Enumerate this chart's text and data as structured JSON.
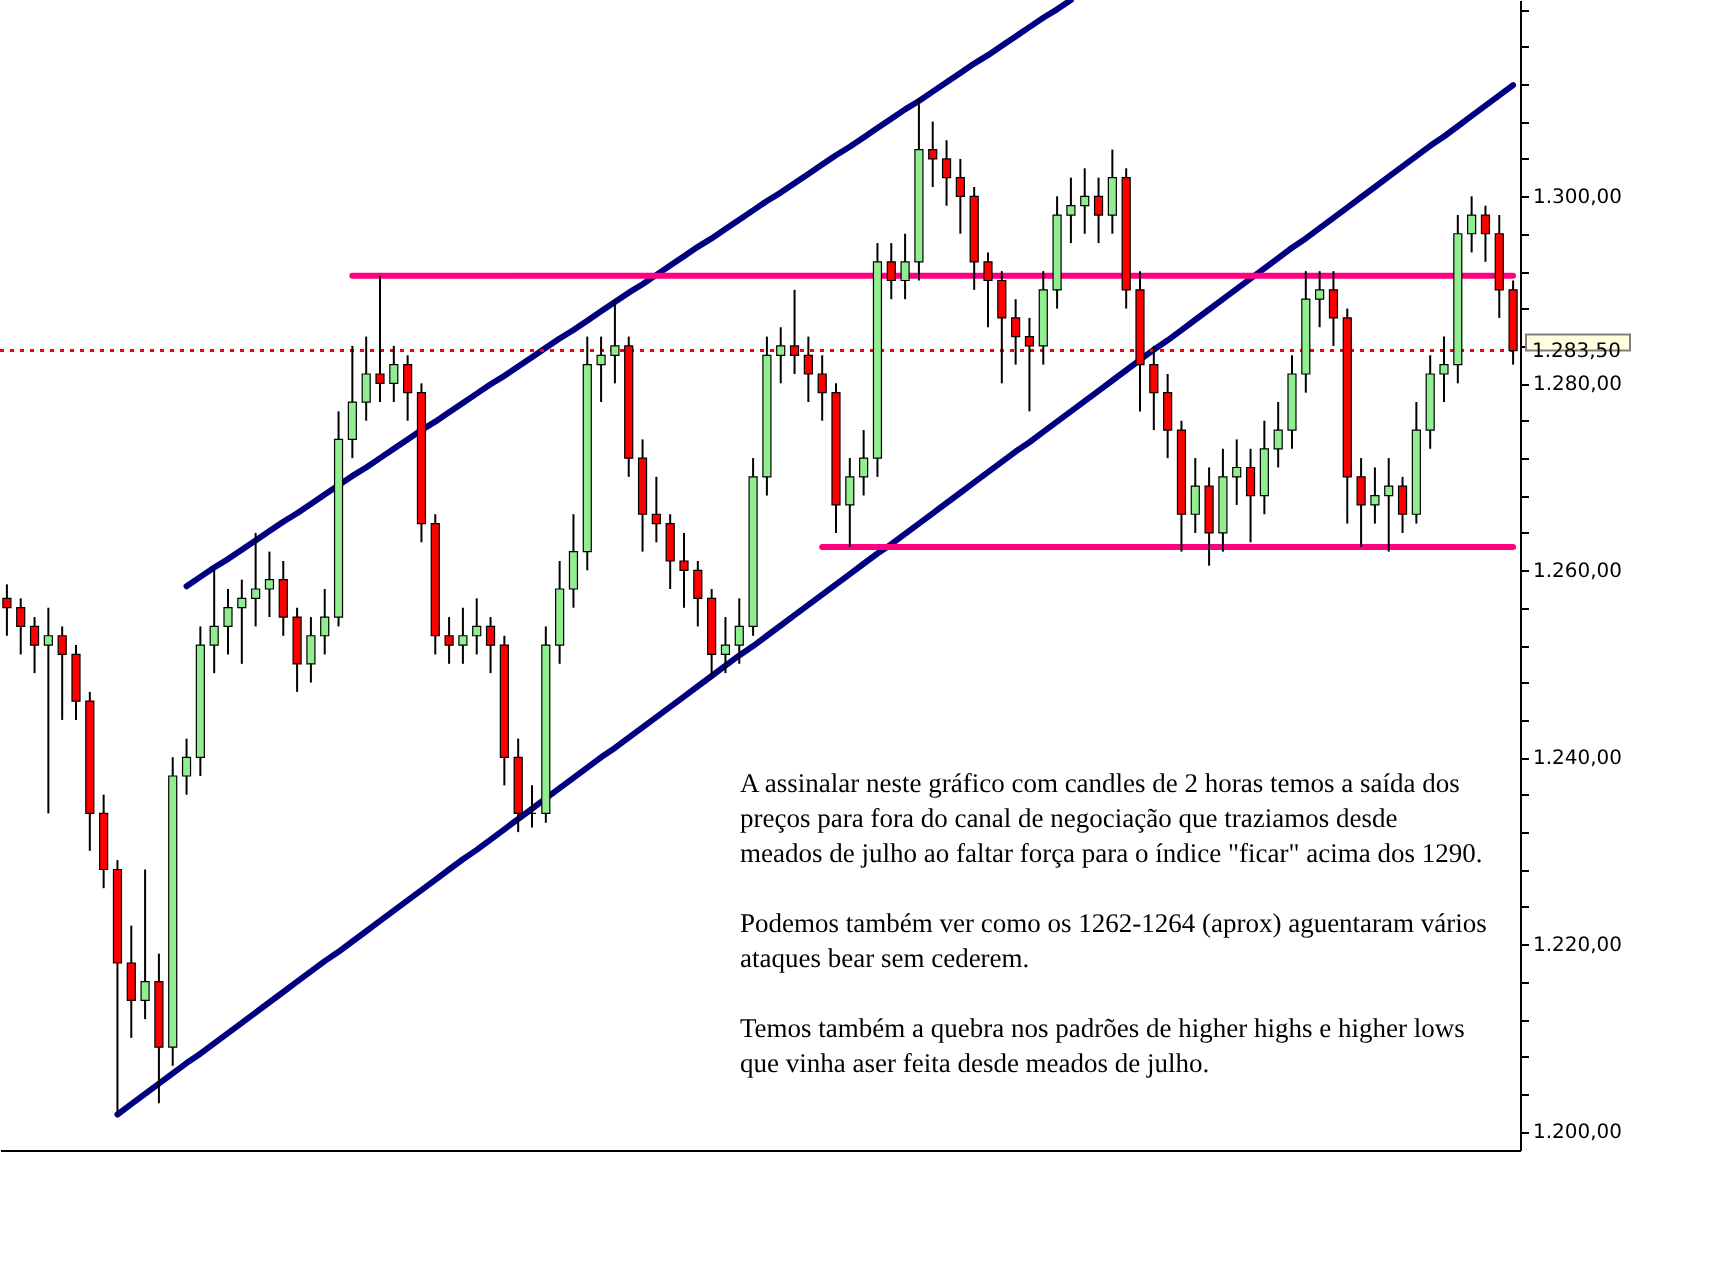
{
  "chart_data": {
    "type": "candlestick",
    "categories": [
      null,
      null,
      null,
      null,
      null,
      null,
      null,
      null,
      null,
      null,
      null,
      null,
      null,
      null,
      null,
      null,
      null,
      null,
      null,
      null,
      null,
      null,
      null,
      null,
      null,
      null,
      null,
      null,
      null,
      null,
      null,
      null,
      null,
      null,
      null,
      null,
      null,
      null,
      null,
      null,
      null,
      null,
      null,
      null,
      null,
      null,
      null,
      null,
      null,
      null,
      null,
      null,
      null,
      null,
      null,
      null,
      null,
      null,
      null,
      null,
      null,
      null,
      null,
      null,
      null,
      null,
      null,
      null,
      null,
      null,
      null,
      null,
      null,
      null,
      null,
      null,
      null,
      null,
      null,
      null,
      null,
      null,
      null,
      null,
      null,
      null,
      null,
      null,
      null,
      null,
      null,
      null,
      null,
      null,
      null,
      null,
      null,
      null,
      null,
      null,
      null,
      null,
      null,
      null,
      null,
      null,
      null,
      null,
      null,
      null
    ],
    "ohlc": [
      [
        1257,
        1258.5,
        1253,
        1256
      ],
      [
        1256,
        1257,
        1251,
        1254
      ],
      [
        1254,
        1255,
        1249,
        1252
      ],
      [
        1252,
        1256,
        1234,
        1253
      ],
      [
        1253,
        1254,
        1244,
        1251
      ],
      [
        1251,
        1252,
        1244,
        1246
      ],
      [
        1246,
        1247,
        1230,
        1234
      ],
      [
        1234,
        1236,
        1226,
        1228
      ],
      [
        1228,
        1229,
        1202,
        1218
      ],
      [
        1218,
        1222,
        1210,
        1214
      ],
      [
        1214,
        1228,
        1212,
        1216
      ],
      [
        1216,
        1219,
        1203,
        1209
      ],
      [
        1209,
        1240,
        1207,
        1238
      ],
      [
        1238,
        1242,
        1236,
        1240
      ],
      [
        1240,
        1254,
        1238,
        1252
      ],
      [
        1252,
        1260,
        1249,
        1254
      ],
      [
        1254,
        1258,
        1251,
        1256
      ],
      [
        1256,
        1259,
        1250,
        1257
      ],
      [
        1257,
        1264,
        1254,
        1258
      ],
      [
        1258,
        1262,
        1255,
        1259
      ],
      [
        1259,
        1261,
        1253,
        1255
      ],
      [
        1255,
        1256,
        1247,
        1250
      ],
      [
        1250,
        1255,
        1248,
        1253
      ],
      [
        1253,
        1258,
        1251,
        1255
      ],
      [
        1255,
        1277,
        1254,
        1274
      ],
      [
        1274,
        1284,
        1272,
        1278
      ],
      [
        1278,
        1285,
        1276,
        1281
      ],
      [
        1281,
        1291.5,
        1278,
        1280
      ],
      [
        1280,
        1284,
        1278,
        1282
      ],
      [
        1282,
        1283,
        1276,
        1279
      ],
      [
        1279,
        1280,
        1263,
        1265
      ],
      [
        1265,
        1266,
        1251,
        1253
      ],
      [
        1253,
        1255,
        1250,
        1252
      ],
      [
        1252,
        1256,
        1250,
        1253
      ],
      [
        1253,
        1257,
        1251,
        1254
      ],
      [
        1254,
        1255,
        1249,
        1252
      ],
      [
        1252,
        1253,
        1237,
        1240
      ],
      [
        1240,
        1242,
        1232,
        1234
      ],
      [
        1234,
        1237,
        1232.5,
        1234
      ],
      [
        1234,
        1254,
        1233,
        1252
      ],
      [
        1252,
        1261,
        1250,
        1258
      ],
      [
        1258,
        1266,
        1256,
        1262
      ],
      [
        1262,
        1285,
        1260,
        1282
      ],
      [
        1282,
        1285,
        1278,
        1283
      ],
      [
        1283,
        1289,
        1280,
        1284
      ],
      [
        1284,
        1285,
        1270,
        1272
      ],
      [
        1272,
        1274,
        1262,
        1266
      ],
      [
        1266,
        1270,
        1263,
        1265
      ],
      [
        1265,
        1266,
        1258,
        1261
      ],
      [
        1261,
        1264,
        1256,
        1260
      ],
      [
        1260,
        1261,
        1254,
        1257
      ],
      [
        1257,
        1258,
        1248.5,
        1251
      ],
      [
        1251,
        1255,
        1249,
        1252
      ],
      [
        1252,
        1257,
        1250,
        1254
      ],
      [
        1254,
        1272,
        1253,
        1270
      ],
      [
        1270,
        1285,
        1268,
        1283
      ],
      [
        1283,
        1286,
        1280,
        1284
      ],
      [
        1284,
        1290,
        1281,
        1283
      ],
      [
        1283,
        1285,
        1278,
        1281
      ],
      [
        1281,
        1283,
        1276,
        1279
      ],
      [
        1279,
        1280,
        1264,
        1267
      ],
      [
        1267,
        1272,
        1262.5,
        1270
      ],
      [
        1270,
        1275,
        1268,
        1272
      ],
      [
        1272,
        1295,
        1270,
        1293
      ],
      [
        1293,
        1295,
        1289,
        1291
      ],
      [
        1291,
        1296,
        1289,
        1293
      ],
      [
        1293,
        1310.5,
        1291,
        1305
      ],
      [
        1305,
        1308,
        1301,
        1304
      ],
      [
        1304,
        1306,
        1299,
        1302
      ],
      [
        1302,
        1304,
        1296,
        1300
      ],
      [
        1300,
        1301,
        1290,
        1293
      ],
      [
        1293,
        1294,
        1286,
        1291
      ],
      [
        1291,
        1292,
        1280,
        1287
      ],
      [
        1287,
        1289,
        1282,
        1285
      ],
      [
        1285,
        1287,
        1277,
        1284
      ],
      [
        1284,
        1292,
        1282,
        1290
      ],
      [
        1290,
        1300,
        1288,
        1298
      ],
      [
        1298,
        1302,
        1295,
        1299
      ],
      [
        1299,
        1303,
        1296,
        1300
      ],
      [
        1300,
        1302,
        1295,
        1298
      ],
      [
        1298,
        1305,
        1296,
        1302
      ],
      [
        1302,
        1303,
        1288,
        1290
      ],
      [
        1290,
        1292,
        1277,
        1282
      ],
      [
        1282,
        1284,
        1275,
        1279
      ],
      [
        1279,
        1281,
        1272,
        1275
      ],
      [
        1275,
        1276,
        1262,
        1266
      ],
      [
        1266,
        1272,
        1264,
        1269
      ],
      [
        1269,
        1271,
        1260.5,
        1264
      ],
      [
        1264,
        1273,
        1262,
        1270
      ],
      [
        1270,
        1274,
        1267,
        1271
      ],
      [
        1271,
        1273,
        1263,
        1268
      ],
      [
        1268,
        1276,
        1266,
        1273
      ],
      [
        1273,
        1278,
        1271,
        1275
      ],
      [
        1275,
        1283,
        1273,
        1281
      ],
      [
        1281,
        1292,
        1279,
        1289
      ],
      [
        1289,
        1292,
        1286,
        1290
      ],
      [
        1290,
        1292,
        1284,
        1287
      ],
      [
        1287,
        1288,
        1265,
        1270
      ],
      [
        1270,
        1272,
        1262.5,
        1267
      ],
      [
        1267,
        1271,
        1265,
        1268
      ],
      [
        1268,
        1272,
        1262,
        1269
      ],
      [
        1269,
        1270,
        1264,
        1266
      ],
      [
        1266,
        1278,
        1265,
        1275
      ],
      [
        1275,
        1283,
        1273,
        1281
      ],
      [
        1281,
        1285,
        1278,
        1282
      ],
      [
        1282,
        1298,
        1280,
        1296
      ],
      [
        1296,
        1300,
        1294,
        1298
      ],
      [
        1298,
        1299,
        1293,
        1296
      ],
      [
        1296,
        1298,
        1287,
        1290
      ],
      [
        1290,
        1291,
        1282,
        1283.5
      ]
    ],
    "series": [
      {
        "type": "line",
        "color": "#000080",
        "values": [
          null,
          null,
          null,
          null,
          null,
          null,
          null,
          null,
          null,
          null,
          null,
          null,
          null,
          1258.3,
          1259.3,
          1260.3,
          1261.2,
          1262.2,
          1263.2,
          1264.2,
          1265.2,
          1266.1,
          1267.1,
          1268.1,
          1269.1,
          1270.1,
          1271.0,
          1272.0,
          1273.0,
          1274.0,
          1275.0,
          1275.9,
          1276.9,
          1277.9,
          1278.9,
          1279.9,
          1280.8,
          1281.8,
          1282.8,
          1283.8,
          1284.8,
          1285.7,
          1286.7,
          1287.7,
          1288.7,
          1289.7,
          1290.6,
          1291.6,
          1292.6,
          1293.6,
          1294.6,
          1295.5,
          1296.5,
          1297.5,
          1298.5,
          1299.5,
          1300.4,
          1301.4,
          1302.4,
          1303.4,
          1304.4,
          1305.3,
          1306.3,
          1307.3,
          1308.3,
          1309.3,
          1310.2,
          1311.2,
          1312.2,
          1313.2,
          1314.2,
          1315.1,
          1316.1,
          1317.1,
          1318.1,
          1319.1,
          1320.0,
          1321.0,
          null,
          null,
          null,
          null,
          null,
          null,
          null,
          null,
          null,
          null,
          null,
          null,
          null,
          null,
          null,
          null,
          null,
          null,
          null,
          null,
          null,
          null,
          null,
          null,
          null,
          null,
          null,
          null,
          null,
          null,
          null,
          null
        ]
      },
      {
        "type": "line",
        "color": "#000080",
        "values": [
          null,
          null,
          null,
          null,
          null,
          null,
          null,
          null,
          1201.8,
          1202.9,
          1204.0,
          1205.1,
          1206.2,
          1207.3,
          1208.3,
          1209.4,
          1210.5,
          1211.6,
          1212.7,
          1213.8,
          1214.9,
          1216.0,
          1217.1,
          1218.2,
          1219.2,
          1220.3,
          1221.4,
          1222.5,
          1223.6,
          1224.7,
          1225.8,
          1226.9,
          1228.0,
          1229.1,
          1230.1,
          1231.2,
          1232.3,
          1233.4,
          1234.5,
          1235.6,
          1236.7,
          1237.8,
          1238.9,
          1240.0,
          1241.0,
          1242.1,
          1243.2,
          1244.3,
          1245.4,
          1246.5,
          1247.6,
          1248.7,
          1249.8,
          1250.9,
          1251.9,
          1253.0,
          1254.1,
          1255.2,
          1256.3,
          1257.4,
          1258.5,
          1259.6,
          1260.7,
          1261.8,
          1262.8,
          1263.9,
          1265.0,
          1266.1,
          1267.2,
          1268.3,
          1269.4,
          1270.5,
          1271.6,
          1272.7,
          1273.7,
          1274.8,
          1275.9,
          1277.0,
          1278.1,
          1279.2,
          1280.3,
          1281.4,
          1282.5,
          1283.6,
          1284.6,
          1285.7,
          1286.8,
          1287.9,
          1289.0,
          1290.1,
          1291.2,
          1292.3,
          1293.4,
          1294.5,
          1295.5,
          1296.6,
          1297.7,
          1298.8,
          1299.9,
          1301.0,
          1302.1,
          1303.2,
          1304.3,
          1305.4,
          1306.4,
          1307.5,
          1308.6,
          1309.7,
          1310.8,
          1311.9
        ]
      },
      {
        "type": "line",
        "color": "#ff0080",
        "values": [
          null,
          null,
          null,
          null,
          null,
          null,
          null,
          null,
          null,
          null,
          null,
          null,
          null,
          null,
          null,
          null,
          null,
          null,
          null,
          null,
          null,
          null,
          null,
          null,
          null,
          1291.5,
          1291.5,
          1291.5,
          1291.5,
          1291.5,
          1291.5,
          1291.5,
          1291.5,
          1291.5,
          1291.5,
          1291.5,
          1291.5,
          1291.5,
          1291.5,
          1291.5,
          1291.5,
          1291.5,
          1291.5,
          1291.5,
          1291.5,
          1291.5,
          1291.5,
          1291.5,
          1291.5,
          1291.5,
          1291.5,
          1291.5,
          1291.5,
          1291.5,
          1291.5,
          1291.5,
          1291.5,
          1291.5,
          1291.5,
          1291.5,
          1291.5,
          1291.5,
          1291.5,
          1291.5,
          1291.5,
          1291.5,
          1291.5,
          1291.5,
          1291.5,
          1291.5,
          1291.5,
          1291.5,
          1291.5,
          1291.5,
          1291.5,
          1291.5,
          1291.5,
          1291.5,
          1291.5,
          1291.5,
          1291.5,
          1291.5,
          1291.5,
          1291.5,
          1291.5,
          1291.5,
          1291.5,
          1291.5,
          1291.5,
          1291.5,
          1291.5,
          1291.5,
          1291.5,
          1291.5,
          1291.5,
          1291.5,
          1291.5,
          1291.5,
          1291.5,
          1291.5,
          1291.5,
          1291.5,
          1291.5,
          1291.5,
          1291.5,
          1291.5,
          1291.5,
          1291.5,
          1291.5,
          1291.5
        ]
      },
      {
        "type": "line",
        "color": "#ff0080",
        "values": [
          null,
          null,
          null,
          null,
          null,
          null,
          null,
          null,
          null,
          null,
          null,
          null,
          null,
          null,
          null,
          null,
          null,
          null,
          null,
          null,
          null,
          null,
          null,
          null,
          null,
          null,
          null,
          null,
          null,
          null,
          null,
          null,
          null,
          null,
          null,
          null,
          null,
          null,
          null,
          null,
          null,
          null,
          null,
          null,
          null,
          null,
          null,
          null,
          null,
          null,
          null,
          null,
          null,
          null,
          null,
          null,
          null,
          null,
          null,
          1262.5,
          1262.5,
          1262.5,
          1262.5,
          1262.5,
          1262.5,
          1262.5,
          1262.5,
          1262.5,
          1262.5,
          1262.5,
          1262.5,
          1262.5,
          1262.5,
          1262.5,
          1262.5,
          1262.5,
          1262.5,
          1262.5,
          1262.5,
          1262.5,
          1262.5,
          1262.5,
          1262.5,
          1262.5,
          1262.5,
          1262.5,
          1262.5,
          1262.5,
          1262.5,
          1262.5,
          1262.5,
          1262.5,
          1262.5,
          1262.5,
          1262.5,
          1262.5,
          1262.5,
          1262.5,
          1262.5,
          1262.5,
          1262.5,
          1262.5,
          1262.5,
          1262.5,
          1262.5,
          1262.5,
          1262.5,
          1262.5,
          1262.5,
          1262.5
        ]
      }
    ],
    "ylim": [
      1198,
      1321
    ],
    "yticks": [
      {
        "value": 1200,
        "label": "1.200,00"
      },
      {
        "value": 1204,
        "label": null
      },
      {
        "value": 1208,
        "label": null
      },
      {
        "value": 1212,
        "label": null
      },
      {
        "value": 1216,
        "label": null
      },
      {
        "value": 1220,
        "label": "1.220,00"
      },
      {
        "value": 1224,
        "label": null
      },
      {
        "value": 1228,
        "label": null
      },
      {
        "value": 1232,
        "label": null
      },
      {
        "value": 1236,
        "label": null
      },
      {
        "value": 1240,
        "label": "1.240,00"
      },
      {
        "value": 1244,
        "label": null
      },
      {
        "value": 1248,
        "label": null
      },
      {
        "value": 1252,
        "label": null
      },
      {
        "value": 1256,
        "label": null
      },
      {
        "value": 1260,
        "label": "1.260,00"
      },
      {
        "value": 1264,
        "label": null
      },
      {
        "value": 1268,
        "label": null
      },
      {
        "value": 1272,
        "label": null
      },
      {
        "value": 1276,
        "label": null
      },
      {
        "value": 1280,
        "label": "1.280,00"
      },
      {
        "value": 1284,
        "label": null
      },
      {
        "value": 1288,
        "label": null
      },
      {
        "value": 1292,
        "label": null
      },
      {
        "value": 1296,
        "label": null
      },
      {
        "value": 1300,
        "label": "1.300,00"
      },
      {
        "value": 1304,
        "label": null
      },
      {
        "value": 1308,
        "label": null
      },
      {
        "value": 1312,
        "label": null
      },
      {
        "value": 1316,
        "label": null
      },
      {
        "value": 1320,
        "label": null
      }
    ],
    "tick_labels": "y",
    "ref_lines": [
      {
        "axis": "y",
        "value": 1283.5,
        "label": "1.283,50",
        "color": "#ff0000",
        "line_style": "dotted"
      }
    ],
    "annotations": [
      "A assinalar neste gráfico com candles de 2 horas temos a saída dos\npreços para fora do canal de negociação que traziamos desde\nmeados de julho ao faltar força para o índice \"ficar\" acima dos 1290.",
      "Podemos também ver como os 1262-1264 (aprox) aguentaram vários\nataques bear sem cederem.",
      "Temos também a quebra nos padrões de higher highs e higher lows\nque vinha aser feita desde meados de julho."
    ]
  }
}
